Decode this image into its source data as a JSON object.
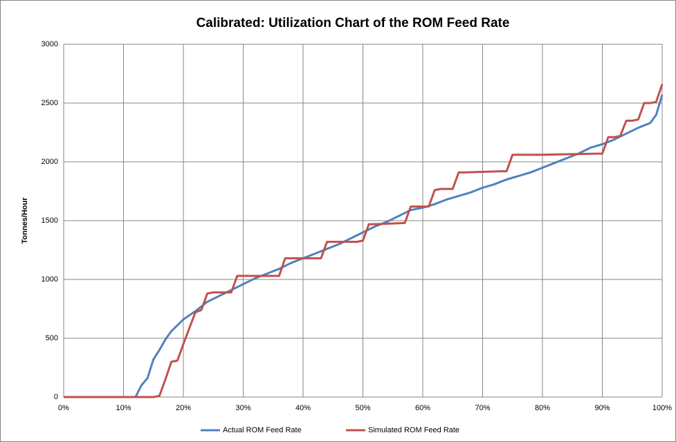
{
  "chart_data": {
    "type": "line",
    "title": "Calibrated:  Utilization Chart of the ROM Feed Rate",
    "y_label": "Tonnes/Hour",
    "xlim": [
      0,
      100
    ],
    "xticks": [
      {
        "value": 0,
        "label": "0%"
      },
      {
        "value": 10,
        "label": "10%"
      },
      {
        "value": 20,
        "label": "20%"
      },
      {
        "value": 30,
        "label": "30%"
      },
      {
        "value": 40,
        "label": "40%"
      },
      {
        "value": 50,
        "label": "50%"
      },
      {
        "value": 60,
        "label": "60%"
      },
      {
        "value": 70,
        "label": "70%"
      },
      {
        "value": 80,
        "label": "80%"
      },
      {
        "value": 90,
        "label": "90%"
      },
      {
        "value": 100,
        "label": "100%"
      }
    ],
    "ylim": [
      0,
      3000
    ],
    "yticks": [
      0,
      500,
      1000,
      1500,
      2000,
      2500,
      3000
    ],
    "grid": true,
    "legend": "bottom",
    "series": [
      {
        "name": "Actual ROM Feed Rate",
        "color": "#4f81bd",
        "x": [
          0,
          11,
          12,
          13,
          14,
          15,
          16,
          17,
          18,
          19,
          20,
          22,
          24,
          26,
          28,
          30,
          32,
          34,
          36,
          38,
          40,
          42,
          44,
          46,
          48,
          50,
          52,
          54,
          56,
          58,
          60,
          62,
          64,
          66,
          68,
          70,
          72,
          74,
          76,
          78,
          80,
          82,
          84,
          86,
          88,
          90,
          92,
          94,
          96,
          98,
          99,
          100
        ],
        "values": [
          0,
          0,
          0,
          100,
          160,
          320,
          400,
          490,
          560,
          610,
          660,
          730,
          810,
          860,
          910,
          960,
          1010,
          1050,
          1090,
          1140,
          1180,
          1220,
          1260,
          1300,
          1350,
          1400,
          1450,
          1490,
          1540,
          1590,
          1610,
          1640,
          1680,
          1710,
          1740,
          1780,
          1810,
          1850,
          1880,
          1910,
          1950,
          1990,
          2030,
          2070,
          2120,
          2150,
          2190,
          2240,
          2290,
          2330,
          2400,
          2570
        ]
      },
      {
        "name": "Simulated ROM Feed Rate",
        "color": "#c0504d",
        "x": [
          0,
          15,
          16,
          17,
          18,
          19,
          20,
          22,
          23,
          24,
          25,
          28,
          29,
          30,
          36,
          37,
          38,
          43,
          44,
          45,
          49,
          50,
          51,
          52,
          57,
          58,
          59,
          61,
          62,
          63,
          65,
          66,
          67,
          73,
          74,
          75,
          76,
          80,
          89,
          90,
          91,
          92,
          93,
          94,
          95,
          96,
          97,
          98,
          99,
          100
        ],
        "values": [
          0,
          0,
          10,
          150,
          300,
          310,
          450,
          720,
          740,
          880,
          890,
          890,
          1030,
          1030,
          1030,
          1180,
          1180,
          1180,
          1320,
          1320,
          1320,
          1330,
          1470,
          1470,
          1480,
          1620,
          1620,
          1620,
          1760,
          1770,
          1770,
          1910,
          1910,
          1920,
          1920,
          2060,
          2060,
          2060,
          2070,
          2070,
          2210,
          2210,
          2220,
          2350,
          2350,
          2360,
          2500,
          2500,
          2510,
          2660
        ]
      }
    ]
  }
}
